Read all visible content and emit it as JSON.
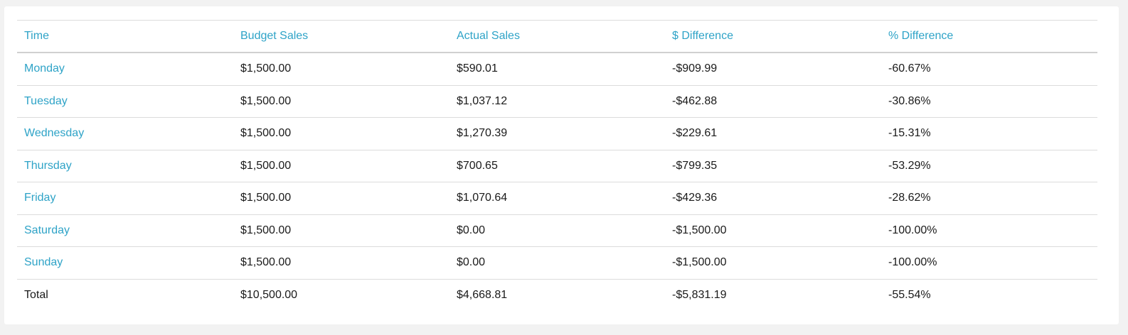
{
  "table": {
    "headers": [
      "Time",
      "Budget Sales",
      "Actual Sales",
      "$ Difference",
      "% Difference"
    ],
    "rows": [
      [
        "Monday",
        "$1,500.00",
        "$590.01",
        "-$909.99",
        "-60.67%"
      ],
      [
        "Tuesday",
        "$1,500.00",
        "$1,037.12",
        "-$462.88",
        "-30.86%"
      ],
      [
        "Wednesday",
        "$1,500.00",
        "$1,270.39",
        "-$229.61",
        "-15.31%"
      ],
      [
        "Thursday",
        "$1,500.00",
        "$700.65",
        "-$799.35",
        "-53.29%"
      ],
      [
        "Friday",
        "$1,500.00",
        "$1,070.64",
        "-$429.36",
        "-28.62%"
      ],
      [
        "Saturday",
        "$1,500.00",
        "$0.00",
        "-$1,500.00",
        "-100.00%"
      ],
      [
        "Sunday",
        "$1,500.00",
        "$0.00",
        "-$1,500.00",
        "-100.00%"
      ]
    ],
    "total": [
      "Total",
      "$10,500.00",
      "$4,668.81",
      "-$5,831.19",
      "-55.54%"
    ]
  },
  "colors": {
    "link": "#2ea3c7",
    "text": "#1a1a1a",
    "background": "#f2f2f2",
    "panel": "#ffffff"
  }
}
